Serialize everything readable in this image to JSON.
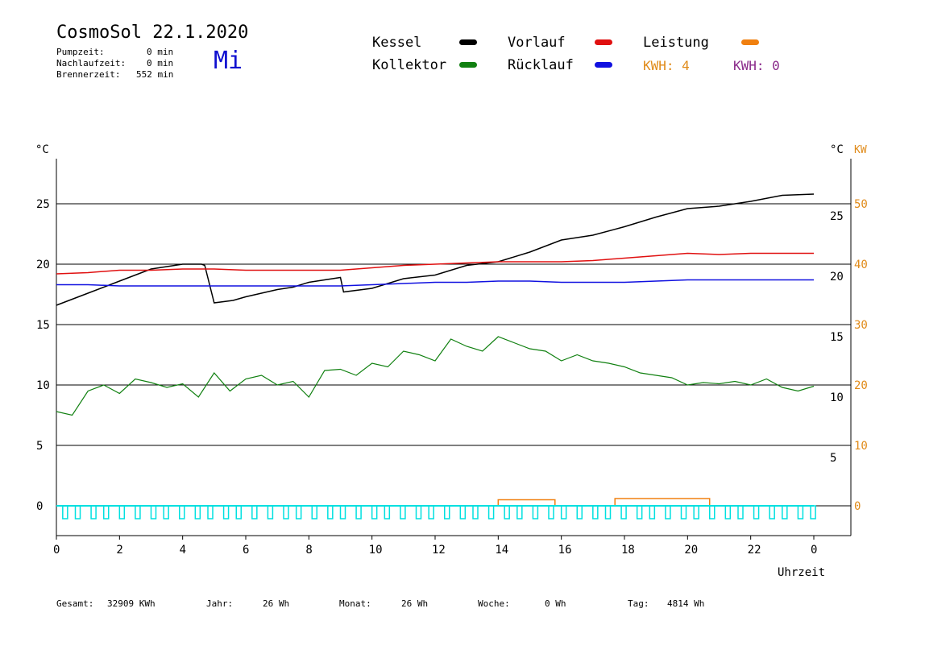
{
  "header": {
    "title": "CosmoSol 22.1.2020",
    "weekday": "Mi",
    "weekday_color": "#1010d0",
    "stats": [
      {
        "label": "Pumpzeit:",
        "value": "0 min"
      },
      {
        "label": "Nachlaufzeit:",
        "value": "0 min"
      },
      {
        "label": "Brennerzeit:",
        "value": "552 min"
      }
    ]
  },
  "legend": {
    "items": [
      {
        "label": "Kessel",
        "color": "#000000"
      },
      {
        "label": "Vorlauf",
        "color": "#e01010"
      },
      {
        "label": "Leistung",
        "color": "#f08010",
        "label_color": "#000000"
      },
      {
        "label": "Kollektor",
        "color": "#108010"
      },
      {
        "label": "Rücklauf",
        "color": "#1010e0"
      }
    ],
    "kwh1": "KWH: 4",
    "kwh1_color": "#e08a18",
    "kwh2": "KWH: 0",
    "kwh2_color": "#8a2a8a"
  },
  "chart_data": {
    "type": "line",
    "xlabel": "Uhrzeit",
    "left_unit": "°C",
    "right_unit_temp": "°C",
    "right_unit_power": "KW",
    "xlim": [
      0,
      24
    ],
    "ylim": [
      -2.5,
      27.5
    ],
    "x_ticks": [
      "0",
      "2",
      "4",
      "6",
      "8",
      "10",
      "12",
      "14",
      "16",
      "18",
      "20",
      "22",
      "0"
    ],
    "y_ticks_left": [
      "0",
      "5",
      "10",
      "15",
      "20",
      "25"
    ],
    "y_ticks_right_temp": [
      "5",
      "10",
      "15",
      "20",
      "25"
    ],
    "y_ticks_right_power": [
      "0",
      "10",
      "20",
      "30",
      "40",
      "50"
    ],
    "gridlines_y": [
      0,
      5,
      10,
      15,
      20,
      25
    ],
    "series": [
      {
        "name": "Kessel",
        "color": "#000000",
        "points": [
          [
            0,
            16.6
          ],
          [
            1,
            17.6
          ],
          [
            2,
            18.6
          ],
          [
            3,
            19.6
          ],
          [
            4,
            20.0
          ],
          [
            4.6,
            20.0
          ],
          [
            4.7,
            19.9
          ],
          [
            5,
            16.8
          ],
          [
            5.6,
            17.0
          ],
          [
            6,
            17.3
          ],
          [
            7,
            17.9
          ],
          [
            7.5,
            18.1
          ],
          [
            8,
            18.5
          ],
          [
            9,
            18.9
          ],
          [
            9.1,
            17.7
          ],
          [
            10,
            18.0
          ],
          [
            11,
            18.8
          ],
          [
            12,
            19.1
          ],
          [
            13,
            19.9
          ],
          [
            14,
            20.2
          ],
          [
            15,
            21.0
          ],
          [
            16,
            22.0
          ],
          [
            17,
            22.4
          ],
          [
            18,
            23.1
          ],
          [
            19,
            23.9
          ],
          [
            20,
            24.6
          ],
          [
            21,
            24.8
          ],
          [
            22,
            25.2
          ],
          [
            23,
            25.7
          ],
          [
            24,
            25.8
          ]
        ]
      },
      {
        "name": "Vorlauf",
        "color": "#e01010",
        "points": [
          [
            0,
            19.2
          ],
          [
            1,
            19.3
          ],
          [
            2,
            19.5
          ],
          [
            3,
            19.5
          ],
          [
            4,
            19.6
          ],
          [
            5,
            19.6
          ],
          [
            6,
            19.5
          ],
          [
            7,
            19.5
          ],
          [
            8,
            19.5
          ],
          [
            9,
            19.5
          ],
          [
            10,
            19.7
          ],
          [
            11,
            19.9
          ],
          [
            12,
            20.0
          ],
          [
            13,
            20.1
          ],
          [
            14,
            20.2
          ],
          [
            15,
            20.2
          ],
          [
            16,
            20.2
          ],
          [
            17,
            20.3
          ],
          [
            18,
            20.5
          ],
          [
            19,
            20.7
          ],
          [
            20,
            20.9
          ],
          [
            21,
            20.8
          ],
          [
            22,
            20.9
          ],
          [
            23,
            20.9
          ],
          [
            24,
            20.9
          ]
        ]
      },
      {
        "name": "Rücklauf",
        "color": "#1010e0",
        "points": [
          [
            0,
            18.3
          ],
          [
            1,
            18.3
          ],
          [
            2,
            18.2
          ],
          [
            3,
            18.2
          ],
          [
            4,
            18.2
          ],
          [
            5,
            18.2
          ],
          [
            6,
            18.2
          ],
          [
            7,
            18.2
          ],
          [
            8,
            18.2
          ],
          [
            9,
            18.2
          ],
          [
            10,
            18.3
          ],
          [
            11,
            18.4
          ],
          [
            12,
            18.5
          ],
          [
            13,
            18.5
          ],
          [
            14,
            18.6
          ],
          [
            15,
            18.6
          ],
          [
            16,
            18.5
          ],
          [
            17,
            18.5
          ],
          [
            18,
            18.5
          ],
          [
            19,
            18.6
          ],
          [
            20,
            18.7
          ],
          [
            21,
            18.7
          ],
          [
            22,
            18.7
          ],
          [
            23,
            18.7
          ],
          [
            24,
            18.7
          ]
        ]
      },
      {
        "name": "Kollektor",
        "color": "#108010",
        "points": [
          [
            0,
            7.8
          ],
          [
            0.5,
            7.5
          ],
          [
            1,
            9.5
          ],
          [
            1.5,
            10.0
          ],
          [
            2,
            9.3
          ],
          [
            2.5,
            10.5
          ],
          [
            3,
            10.2
          ],
          [
            3.5,
            9.8
          ],
          [
            4,
            10.1
          ],
          [
            4.5,
            9.0
          ],
          [
            5,
            11.0
          ],
          [
            5.5,
            9.5
          ],
          [
            6,
            10.5
          ],
          [
            6.5,
            10.8
          ],
          [
            7,
            10.0
          ],
          [
            7.5,
            10.3
          ],
          [
            8,
            9.0
          ],
          [
            8.5,
            11.2
          ],
          [
            9,
            11.3
          ],
          [
            9.5,
            10.8
          ],
          [
            10,
            11.8
          ],
          [
            10.5,
            11.5
          ],
          [
            11,
            12.8
          ],
          [
            11.5,
            12.5
          ],
          [
            12,
            12.0
          ],
          [
            12.5,
            13.8
          ],
          [
            13,
            13.2
          ],
          [
            13.5,
            12.8
          ],
          [
            14,
            14.0
          ],
          [
            14.5,
            13.5
          ],
          [
            15,
            13.0
          ],
          [
            15.5,
            12.8
          ],
          [
            16,
            12.0
          ],
          [
            16.5,
            12.5
          ],
          [
            17,
            12.0
          ],
          [
            17.5,
            11.8
          ],
          [
            18,
            11.5
          ],
          [
            18.5,
            11.0
          ],
          [
            19,
            10.8
          ],
          [
            19.5,
            10.6
          ],
          [
            20,
            10.0
          ],
          [
            20.5,
            10.2
          ],
          [
            21,
            10.1
          ],
          [
            21.5,
            10.3
          ],
          [
            22,
            10.0
          ],
          [
            22.5,
            10.5
          ],
          [
            23,
            9.8
          ],
          [
            23.5,
            9.5
          ],
          [
            24,
            9.9
          ]
        ]
      },
      {
        "name": "Leistung",
        "color": "#f08010",
        "points": [
          [
            0,
            0
          ],
          [
            14.0,
            0
          ],
          [
            14.0,
            0.5
          ],
          [
            15.8,
            0.5
          ],
          [
            15.8,
            0
          ],
          [
            17.7,
            0
          ],
          [
            17.7,
            0.6
          ],
          [
            20.7,
            0.6
          ],
          [
            20.7,
            0
          ],
          [
            24,
            0
          ]
        ]
      },
      {
        "name": "Pumpe",
        "color": "#00e0e0",
        "type": "pulses",
        "pulses": [
          0.2,
          0.6,
          1.1,
          1.5,
          2.0,
          2.5,
          3.0,
          3.4,
          3.9,
          4.4,
          4.8,
          5.3,
          5.7,
          6.2,
          6.7,
          7.2,
          7.6,
          8.1,
          8.6,
          9.0,
          9.5,
          10.0,
          10.4,
          10.9,
          11.4,
          11.8,
          12.3,
          12.8,
          13.2,
          13.7,
          14.2,
          14.6,
          15.1,
          15.6,
          16.0,
          16.5,
          17.0,
          17.4,
          17.9,
          18.4,
          18.8,
          19.3,
          19.8,
          20.2,
          20.7,
          21.2,
          21.6,
          22.1,
          22.6,
          23.0,
          23.5,
          23.9
        ]
      }
    ]
  },
  "footer": {
    "items": [
      {
        "label": "Gesamt:",
        "value": "32909 KWh"
      },
      {
        "label": "Jahr:",
        "value": "26 Wh"
      },
      {
        "label": "Monat:",
        "value": "26 Wh"
      },
      {
        "label": "Woche:",
        "value": "0 Wh"
      },
      {
        "label": "Tag:",
        "value": "4814 Wh"
      }
    ]
  }
}
